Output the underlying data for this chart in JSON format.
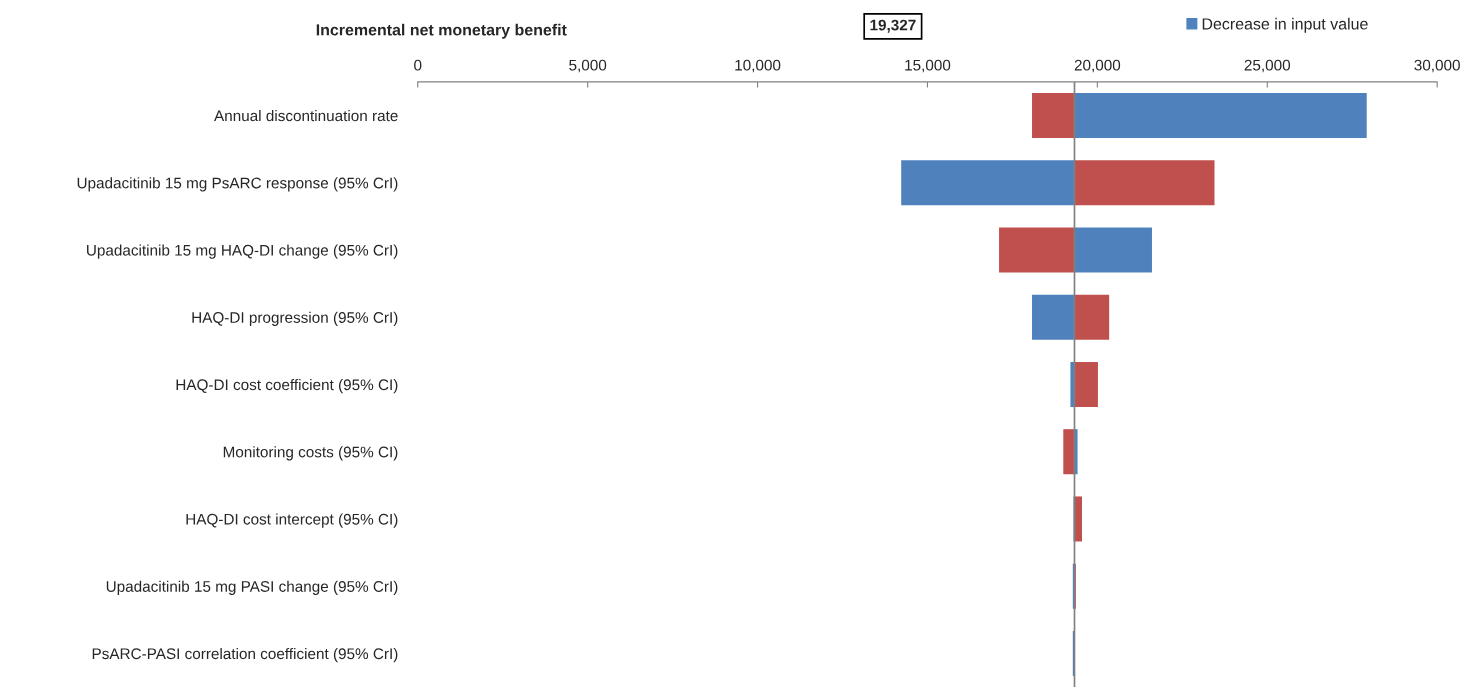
{
  "chart_data": {
    "type": "bar",
    "orientation": "horizontal",
    "title": "Incremental net monetary benefit",
    "categories": [
      "Annual discontinuation rate",
      "Upadacitinib 15 mg PsARC response (95% CrI)",
      "Upadacitinib 15 mg HAQ-DI change (95% CrI)",
      "HAQ-DI progression (95% CrI)",
      "HAQ-DI cost coefficient (95% CI)",
      "Monitoring costs (95% CI)",
      "HAQ-DI cost intercept (95% CI)",
      "Upadacitinib 15 mg PASI change (95% CrI)",
      "PsARC-PASI correlation coefficient (95% CrI)"
    ],
    "series": [
      {
        "name": "Decrease in input value",
        "color": "#4f81bd",
        "base": [
          19327,
          14227,
          19327,
          18077,
          19207,
          19327,
          19297,
          19277,
          19277
        ],
        "values": [
          8600,
          5100,
          2280,
          1250,
          120,
          90,
          30,
          50,
          50
        ]
      },
      {
        "color": "#c0504d",
        "base": [
          18077,
          19327,
          17107,
          19327,
          19327,
          18997,
          19327,
          19327,
          19327
        ],
        "values": [
          1250,
          4120,
          2220,
          1020,
          690,
          330,
          220,
          40,
          10
        ]
      }
    ],
    "xlim": [
      0,
      30000
    ],
    "xticks": [
      0,
      {
        "value": 5000,
        "label": "5,000"
      },
      {
        "value": 10000,
        "label": "10,000"
      },
      {
        "value": 15000,
        "label": "15,000"
      },
      {
        "value": 20000,
        "label": "20,000"
      },
      {
        "value": 25000,
        "label": "25,000"
      },
      {
        "value": 30000,
        "label": "30,000"
      }
    ],
    "ref_lines": [
      {
        "axis": "x",
        "value": 19327,
        "color": "#808080"
      }
    ],
    "annotations": [
      "19,327"
    ],
    "grid": false,
    "legend": "top right"
  }
}
